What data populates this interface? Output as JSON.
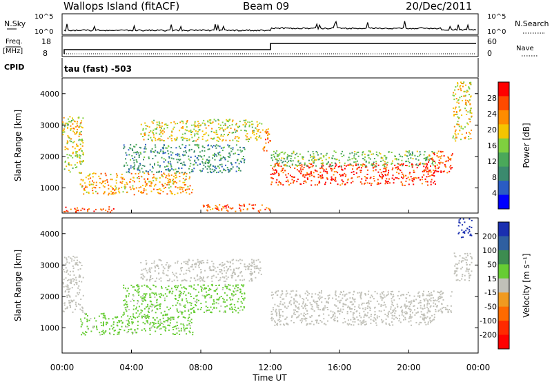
{
  "header": {
    "title": "Wallops Island (fitACF)",
    "beam": "Beam 09",
    "date": "20/Dec/2011"
  },
  "status_panels": {
    "nsky_label": "N.Sky",
    "nsky_ticks": [
      "10^5",
      "10^0"
    ],
    "nsearch_label": "N.Search",
    "nsearch_ticks": [
      "10^5",
      "10^0"
    ],
    "freq_label_1": "Freq.",
    "freq_label_2": "[MHz]",
    "freq_ticks": [
      "18",
      "8"
    ],
    "nave_label": "Nave",
    "nave_ticks": [
      "60",
      "0"
    ],
    "cpid_label": "CPID",
    "cpid_text": "tau (fast) -503"
  },
  "colors": {
    "power_scale": [
      "#0000ff",
      "#2a5cc4",
      "#3b8a6e",
      "#4aa85a",
      "#7fcf3f",
      "#f5c400",
      "#ff8c00",
      "#ff4a00",
      "#ff0000"
    ],
    "velocity_scale": [
      "#1a2fb0",
      "#2f5fa0",
      "#3d8c50",
      "#66cc33",
      "#c0c0b8",
      "#f09a20",
      "#ff6a00",
      "#ff2a00",
      "#ff0000"
    ]
  },
  "chart_data": [
    {
      "type": "heatmap",
      "name": "power",
      "ylabel": "Slant Range [km]",
      "yticks": [
        "1000",
        "2000",
        "3000",
        "4000"
      ],
      "ylim": [
        200,
        4500
      ],
      "colorbar_label": "Power [dB]",
      "colorbar_ticks": [
        "4",
        "8",
        "12",
        "16",
        "20",
        "24",
        "28"
      ],
      "color_range": [
        0,
        32
      ],
      "echo_regions": [
        {
          "t0": 0.0,
          "t1": 1.2,
          "r0": 1500,
          "r1": 3300,
          "level": 18
        },
        {
          "t0": 0.6,
          "t1": 1.1,
          "r0": 2700,
          "r1": 3200,
          "level": 22
        },
        {
          "t0": 1.0,
          "t1": 7.5,
          "r0": 800,
          "r1": 1500,
          "level": 22
        },
        {
          "t0": 3.5,
          "t1": 10.5,
          "r0": 1500,
          "r1": 2400,
          "level": 10
        },
        {
          "t0": 4.5,
          "t1": 11.5,
          "r0": 2500,
          "r1": 3200,
          "level": 18
        },
        {
          "t0": 11.5,
          "t1": 12.0,
          "r0": 2200,
          "r1": 3000,
          "level": 24
        },
        {
          "t0": 12.0,
          "t1": 21.5,
          "r0": 1100,
          "r1": 1800,
          "level": 28
        },
        {
          "t0": 12.0,
          "t1": 21.5,
          "r0": 1700,
          "r1": 2200,
          "level": 14
        },
        {
          "t0": 21.0,
          "t1": 22.5,
          "r0": 1500,
          "r1": 2200,
          "level": 26
        },
        {
          "t0": 22.5,
          "t1": 23.6,
          "r0": 2500,
          "r1": 4400,
          "level": 20
        },
        {
          "t0": 0.0,
          "t1": 3.0,
          "r0": 250,
          "r1": 420,
          "level": 26
        },
        {
          "t0": 8.0,
          "t1": 12.0,
          "r0": 250,
          "r1": 500,
          "level": 26
        }
      ]
    },
    {
      "type": "heatmap",
      "name": "velocity",
      "ylabel": "Slant Range [km]",
      "yticks": [
        "1000",
        "2000",
        "3000",
        "4000"
      ],
      "ylim": [
        200,
        4500
      ],
      "colorbar_label": "Velocity [m s⁻¹]",
      "colorbar_ticks": [
        "200",
        "100",
        "50",
        "15",
        "-15",
        "-50",
        "-100",
        "-200"
      ],
      "color_range": [
        -250,
        250
      ],
      "echo_regions": [
        {
          "t0": 0.0,
          "t1": 1.2,
          "r0": 1500,
          "r1": 3300,
          "level": 0
        },
        {
          "t0": 1.0,
          "t1": 7.5,
          "r0": 800,
          "r1": 1500,
          "level": 40
        },
        {
          "t0": 3.5,
          "t1": 10.5,
          "r0": 1500,
          "r1": 2400,
          "level": 40
        },
        {
          "t0": 4.5,
          "t1": 11.5,
          "r0": 2500,
          "r1": 3200,
          "level": 0
        },
        {
          "t0": 12.0,
          "t1": 21.5,
          "r0": 1100,
          "r1": 2200,
          "level": 0
        },
        {
          "t0": 21.0,
          "t1": 22.5,
          "r0": 1500,
          "r1": 2200,
          "level": 0
        },
        {
          "t0": 22.5,
          "t1": 23.6,
          "r0": 2500,
          "r1": 3400,
          "level": 0
        },
        {
          "t0": 22.8,
          "t1": 23.6,
          "r0": 3900,
          "r1": 4500,
          "level": 210
        }
      ]
    }
  ],
  "x_axis": {
    "label": "Time UT",
    "ticks": [
      "00:00",
      "04:00",
      "08:00",
      "12:00",
      "16:00",
      "20:00",
      "00:00"
    ],
    "range_hours": [
      0,
      24
    ]
  }
}
